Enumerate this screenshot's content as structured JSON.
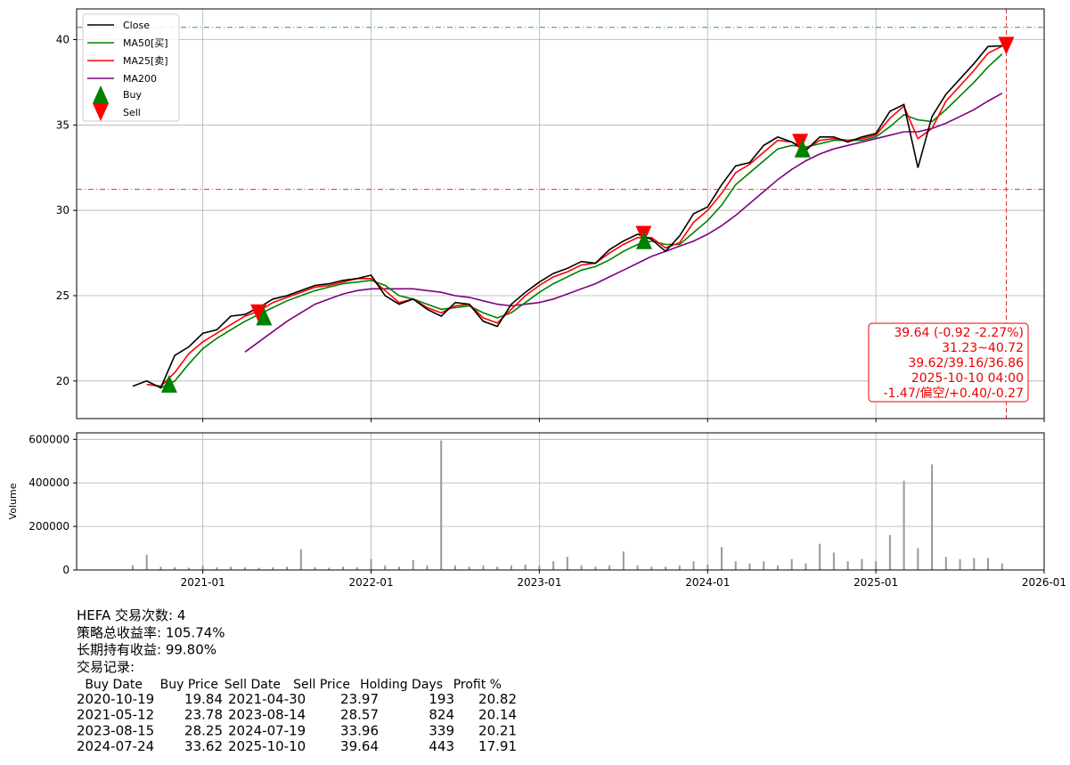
{
  "chart_data": {
    "type": "line",
    "x": [
      "2020-08",
      "2020-09",
      "2020-10",
      "2020-11",
      "2020-12",
      "2021-01",
      "2021-02",
      "2021-03",
      "2021-04",
      "2021-05",
      "2021-06",
      "2021-07",
      "2021-08",
      "2021-09",
      "2021-10",
      "2021-11",
      "2021-12",
      "2022-01",
      "2022-02",
      "2022-03",
      "2022-04",
      "2022-05",
      "2022-06",
      "2022-07",
      "2022-08",
      "2022-09",
      "2022-10",
      "2022-11",
      "2022-12",
      "2023-01",
      "2023-02",
      "2023-03",
      "2023-04",
      "2023-05",
      "2023-06",
      "2023-07",
      "2023-08",
      "2023-09",
      "2023-10",
      "2023-11",
      "2023-12",
      "2024-01",
      "2024-02",
      "2024-03",
      "2024-04",
      "2024-05",
      "2024-06",
      "2024-07",
      "2024-08",
      "2024-09",
      "2024-10",
      "2024-11",
      "2024-12",
      "2025-01",
      "2025-02",
      "2025-03",
      "2025-04",
      "2025-05",
      "2025-06",
      "2025-07",
      "2025-08",
      "2025-09",
      "2025-10"
    ],
    "series": [
      {
        "name": "Close",
        "color": "#000000",
        "values": [
          19.7,
          20.0,
          19.6,
          21.5,
          22.0,
          22.8,
          23.0,
          23.8,
          23.9,
          24.3,
          24.8,
          25.0,
          25.3,
          25.6,
          25.7,
          25.9,
          26.0,
          26.2,
          25.0,
          24.5,
          24.8,
          24.2,
          23.8,
          24.6,
          24.5,
          23.5,
          23.2,
          24.5,
          25.2,
          25.8,
          26.3,
          26.6,
          27.0,
          26.9,
          27.7,
          28.2,
          28.6,
          28.3,
          27.6,
          28.5,
          29.8,
          30.2,
          31.5,
          32.6,
          32.8,
          33.8,
          34.3,
          34.0,
          33.5,
          34.3,
          34.3,
          34.0,
          34.3,
          34.5,
          35.8,
          36.2,
          32.5,
          35.5,
          36.8,
          37.7,
          38.6,
          39.6,
          39.64
        ]
      },
      {
        "name": "MA50[买]",
        "color": "#008000",
        "values": [
          null,
          null,
          19.6,
          20.0,
          21.0,
          21.9,
          22.5,
          23.0,
          23.5,
          23.9,
          24.3,
          24.7,
          25.0,
          25.3,
          25.5,
          25.7,
          25.8,
          25.9,
          25.6,
          25.0,
          24.8,
          24.5,
          24.2,
          24.3,
          24.4,
          24.0,
          23.7,
          24.0,
          24.6,
          25.2,
          25.7,
          26.1,
          26.5,
          26.7,
          27.1,
          27.6,
          28.0,
          28.2,
          28.0,
          28.0,
          28.7,
          29.4,
          30.3,
          31.5,
          32.2,
          32.9,
          33.6,
          33.8,
          33.7,
          33.9,
          34.1,
          34.1,
          34.1,
          34.3,
          34.9,
          35.6,
          35.3,
          35.2,
          35.9,
          36.7,
          37.5,
          38.4,
          39.16
        ]
      },
      {
        "name": "MA25[卖]",
        "color": "#ff0000",
        "values": [
          null,
          19.8,
          19.7,
          20.5,
          21.6,
          22.3,
          22.8,
          23.3,
          23.8,
          24.1,
          24.6,
          24.9,
          25.2,
          25.5,
          25.6,
          25.8,
          26.0,
          26.0,
          25.3,
          24.6,
          24.8,
          24.3,
          24.0,
          24.4,
          24.5,
          23.7,
          23.4,
          24.2,
          25.0,
          25.6,
          26.1,
          26.4,
          26.8,
          26.9,
          27.5,
          28.0,
          28.4,
          28.4,
          27.8,
          28.1,
          29.3,
          30.0,
          31.0,
          32.2,
          32.7,
          33.4,
          34.1,
          34.0,
          33.6,
          34.1,
          34.2,
          34.1,
          34.2,
          34.4,
          35.4,
          36.1,
          34.2,
          34.8,
          36.4,
          37.3,
          38.2,
          39.2,
          39.62
        ]
      },
      {
        "name": "MA200",
        "color": "#800080",
        "values": [
          null,
          null,
          null,
          null,
          null,
          null,
          null,
          null,
          21.7,
          22.3,
          22.9,
          23.5,
          24.0,
          24.5,
          24.8,
          25.1,
          25.3,
          25.4,
          25.4,
          25.4,
          25.4,
          25.3,
          25.2,
          25.0,
          24.9,
          24.7,
          24.5,
          24.4,
          24.5,
          24.6,
          24.8,
          25.1,
          25.4,
          25.7,
          26.1,
          26.5,
          26.9,
          27.3,
          27.6,
          27.9,
          28.2,
          28.6,
          29.1,
          29.7,
          30.4,
          31.1,
          31.8,
          32.4,
          32.9,
          33.3,
          33.6,
          33.8,
          34.0,
          34.2,
          34.4,
          34.6,
          34.6,
          34.8,
          35.1,
          35.5,
          35.9,
          36.4,
          36.86
        ]
      }
    ],
    "signals": [
      {
        "name": "Buy",
        "color": "#008000"
      },
      {
        "name": "Sell",
        "color": "#ff0000"
      }
    ],
    "hlines": [
      {
        "value": 40.72,
        "color": "#2ca02c"
      },
      {
        "value": 31.23,
        "color": "#e03030"
      }
    ],
    "vline": {
      "x": "2025-10-10",
      "color": "#e03030"
    },
    "annotation": [
      "39.64 (-0.92 -2.27%)",
      "31.23~40.72",
      "39.62/39.16/36.86",
      "2025-10-10 04:00",
      "-1.47/偏空/+0.40/-0.27"
    ],
    "xlim": [
      "2020-04",
      "2026-01"
    ],
    "xticks": [
      "2021-01",
      "2022-01",
      "2023-01",
      "2024-01",
      "2025-01",
      "2026-01"
    ],
    "ylim": [
      17.8,
      41.8
    ],
    "yticks": [
      20,
      25,
      30,
      35,
      40
    ],
    "grid": true,
    "legend": "upper left",
    "volume": {
      "ylabel": "Volume",
      "color": "#999999",
      "values": [
        20000,
        70000,
        15000,
        12000,
        10000,
        20000,
        12000,
        15000,
        12000,
        10000,
        12000,
        15000,
        95000,
        12000,
        10000,
        15000,
        12000,
        50000,
        20000,
        15000,
        45000,
        20000,
        595000,
        20000,
        15000,
        20000,
        15000,
        20000,
        25000,
        20000,
        40000,
        60000,
        20000,
        15000,
        20000,
        85000,
        20000,
        15000,
        15000,
        20000,
        40000,
        25000,
        105000,
        40000,
        30000,
        40000,
        20000,
        50000,
        30000,
        120000,
        80000,
        40000,
        50000,
        40000,
        160000,
        410000,
        100000,
        485000,
        60000,
        50000,
        55000,
        55000,
        30000
      ],
      "ylim": [
        0,
        630000
      ],
      "yticks": [
        0,
        200000,
        400000,
        600000
      ]
    }
  },
  "summary": {
    "title": "HEFA 交易次数: 4",
    "total_return": "策略总收益率: 105.74%",
    "hold_return": "长期持有收益: 99.80%",
    "records_label": "交易记录:",
    "columns": [
      "Buy Date",
      "Buy Price",
      "Sell Date",
      "Sell Price",
      "Holding Days",
      "Profit %"
    ],
    "rows": [
      [
        "2020-10-19",
        19.84,
        "2021-04-30",
        23.97,
        193,
        20.82
      ],
      [
        "2021-05-12",
        23.78,
        "2023-08-14",
        28.57,
        824,
        20.14
      ],
      [
        "2023-08-15",
        28.25,
        "2024-07-19",
        33.96,
        339,
        20.21
      ],
      [
        "2024-07-24",
        33.62,
        "2025-10-10",
        39.64,
        443,
        17.91
      ]
    ]
  }
}
